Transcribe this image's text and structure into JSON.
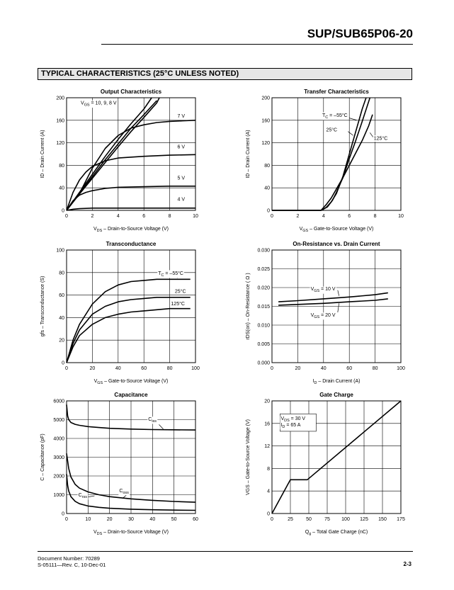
{
  "header": {
    "title": "SUP/SUB65P06-20"
  },
  "section": {
    "title": "TYPICAL CHARACTERISTICS (25°C UNLESS NOTED)"
  },
  "footer": {
    "doc_number": "Document Number:  70289",
    "revision": "S-05111—Rev. C, 10-Dec-01",
    "page": "2-3"
  },
  "chart_data": [
    {
      "id": "output",
      "type": "line",
      "title": "Output Characteristics",
      "xlabel": "VDS – Drain-to-Source Voltage (V)",
      "ylabel": "ID – Drain Current (A)",
      "xlim": [
        0,
        10
      ],
      "ylim": [
        0,
        200
      ],
      "xticks": [
        0,
        2,
        4,
        6,
        8,
        10
      ],
      "yticks": [
        0,
        40,
        80,
        120,
        160,
        200
      ],
      "grid": true,
      "series": [
        {
          "name": "VGS = 10, 9, 8 V",
          "x": [
            0,
            1,
            2,
            3,
            4,
            5,
            6,
            6.6
          ],
          "y": [
            0,
            32,
            64,
            96,
            126,
            154,
            180,
            200
          ]
        },
        {
          "x": [
            0,
            1,
            2,
            3,
            4,
            5,
            6,
            7
          ],
          "y": [
            0,
            30,
            60,
            90,
            118,
            146,
            170,
            195
          ]
        },
        {
          "x": [
            0,
            1,
            2,
            3,
            4,
            5,
            6,
            7,
            7.2
          ],
          "y": [
            0,
            29,
            57,
            85,
            113,
            140,
            165,
            191,
            200
          ]
        },
        {
          "name": "7 V",
          "x": [
            0,
            1,
            2,
            3,
            4,
            5,
            6,
            7,
            8,
            9,
            10
          ],
          "y": [
            0,
            30,
            75,
            110,
            133,
            146,
            152,
            156,
            158,
            159,
            160
          ]
        },
        {
          "name": "6 V",
          "x": [
            0,
            0.5,
            1,
            1.5,
            2,
            3,
            4,
            6,
            8,
            10
          ],
          "y": [
            0,
            32,
            54,
            68,
            78,
            88,
            93,
            96,
            98,
            99
          ]
        },
        {
          "name": "5 V",
          "x": [
            0,
            0.5,
            1,
            1.5,
            2,
            3,
            4,
            6,
            8,
            10
          ],
          "y": [
            0,
            17,
            27,
            32,
            35,
            39,
            41,
            42,
            43,
            43
          ]
        },
        {
          "name": "4 V",
          "x": [
            0,
            0.5,
            1,
            2,
            4,
            6,
            8,
            10
          ],
          "y": [
            0,
            2,
            3,
            4,
            4,
            4,
            4,
            4
          ]
        }
      ]
    },
    {
      "id": "transfer",
      "type": "line",
      "title": "Transfer Characteristics",
      "xlabel": "VGS – Gate-to-Source Voltage (V)",
      "ylabel": "ID – Drain Current (A)",
      "xlim": [
        0,
        10
      ],
      "ylim": [
        0,
        200
      ],
      "xticks": [
        0,
        2,
        4,
        6,
        8,
        10
      ],
      "yticks": [
        0,
        40,
        80,
        120,
        160,
        200
      ],
      "grid": true,
      "series": [
        {
          "name": "TC = –55°C",
          "x": [
            0,
            3.8,
            4.2,
            4.6,
            5,
            5.5,
            6,
            6.5,
            7,
            7.3
          ],
          "y": [
            0,
            0,
            5,
            15,
            30,
            60,
            100,
            140,
            180,
            200
          ]
        },
        {
          "name": "25°C",
          "x": [
            0,
            3.8,
            4.3,
            4.7,
            5,
            5.5,
            6,
            6.5,
            7,
            7.6
          ],
          "y": [
            0,
            0,
            6,
            18,
            32,
            58,
            92,
            124,
            158,
            200
          ]
        },
        {
          "name": "125°C",
          "x": [
            0,
            3.8,
            4.2,
            4.6,
            5,
            5.5,
            6,
            6.5,
            7,
            7.5,
            7.8
          ],
          "y": [
            0,
            0,
            10,
            22,
            38,
            58,
            80,
            102,
            124,
            150,
            170
          ]
        }
      ]
    },
    {
      "id": "transconductance",
      "type": "line",
      "title": "Transconductance",
      "xlabel": "VGS – Gate-to-Source Voltage (V)",
      "ylabel": "gfs – Transconductance (S)",
      "xlim": [
        0,
        100
      ],
      "ylim": [
        0,
        100
      ],
      "xticks": [
        0,
        20,
        40,
        60,
        80,
        100
      ],
      "yticks": [
        0,
        20,
        40,
        60,
        80,
        100
      ],
      "grid": true,
      "series": [
        {
          "name": "TC = –55°C",
          "x": [
            0,
            5,
            10,
            20,
            30,
            40,
            50,
            60,
            70,
            80,
            90,
            96
          ],
          "y": [
            0,
            20,
            34,
            52,
            63,
            69,
            72,
            73,
            74,
            74,
            74,
            74
          ]
        },
        {
          "name": "25°C",
          "x": [
            0,
            5,
            10,
            20,
            30,
            40,
            50,
            60,
            70,
            80,
            90,
            96
          ],
          "y": [
            0,
            17,
            29,
            43,
            50,
            54,
            56,
            57,
            58,
            58,
            58,
            58
          ]
        },
        {
          "name": "125°C",
          "x": [
            0,
            5,
            10,
            20,
            30,
            40,
            50,
            60,
            70,
            80,
            90,
            96
          ],
          "y": [
            0,
            14,
            24,
            34,
            40,
            43,
            45,
            46,
            47,
            48,
            48,
            48
          ]
        }
      ]
    },
    {
      "id": "onres",
      "type": "line",
      "title": "On-Resistance vs. Drain Current",
      "xlabel": "ID – Drain Current (A)",
      "ylabel": "rDS(on) – On-Resistance ( Ω )",
      "xlim": [
        0,
        100
      ],
      "ylim": [
        0,
        0.03
      ],
      "xticks": [
        0,
        20,
        40,
        60,
        80,
        100
      ],
      "yticks": [
        0.0,
        0.005,
        0.01,
        0.015,
        0.02,
        0.025,
        0.03
      ],
      "ydecimals": 3,
      "grid": true,
      "series": [
        {
          "name": "VGS = 10 V",
          "x": [
            5,
            20,
            40,
            60,
            80,
            90
          ],
          "y": [
            0.0162,
            0.0165,
            0.017,
            0.0175,
            0.0181,
            0.0186
          ]
        },
        {
          "name": "VGS = 20 V",
          "x": [
            5,
            20,
            40,
            60,
            80,
            90
          ],
          "y": [
            0.0153,
            0.0155,
            0.0158,
            0.0162,
            0.0166,
            0.017
          ]
        }
      ]
    },
    {
      "id": "capacitance",
      "type": "line",
      "title": "Capacitance",
      "xlabel": "VDS – Drain-to-Source Voltage (V)",
      "ylabel": "C – Capacitance (pF)",
      "xlim": [
        0,
        60
      ],
      "ylim": [
        0,
        6000
      ],
      "xticks": [
        0,
        10,
        20,
        30,
        40,
        50,
        60
      ],
      "yticks": [
        0,
        1000,
        2000,
        3000,
        4000,
        5000,
        6000
      ],
      "grid": true,
      "series": [
        {
          "name": "Ciss",
          "x": [
            0,
            0.5,
            1,
            2,
            4,
            6,
            10,
            15,
            20,
            30,
            40,
            50,
            60
          ],
          "y": [
            5800,
            5200,
            5000,
            4850,
            4750,
            4700,
            4630,
            4580,
            4540,
            4500,
            4470,
            4460,
            4450
          ]
        },
        {
          "name": "Coss",
          "x": [
            0,
            0.5,
            1,
            2,
            4,
            6,
            10,
            15,
            20,
            30,
            40,
            50,
            60
          ],
          "y": [
            3200,
            2800,
            2400,
            1950,
            1550,
            1350,
            1150,
            1000,
            900,
            780,
            700,
            640,
            600
          ]
        },
        {
          "name": "Crss",
          "x": [
            0,
            0.5,
            1,
            2,
            4,
            6,
            10,
            15,
            20,
            30,
            40,
            50,
            60
          ],
          "y": [
            2100,
            1500,
            1200,
            900,
            650,
            520,
            400,
            330,
            280,
            230,
            200,
            180,
            170
          ]
        }
      ]
    },
    {
      "id": "gatecharge",
      "type": "line",
      "title": "Gate Charge",
      "xlabel": "Qg – Total Gate Charge (nC)",
      "ylabel": "VGS – Gate-to-Source Voltage (V)",
      "xlim": [
        0,
        175
      ],
      "ylim": [
        0,
        20
      ],
      "xticks": [
        0,
        25,
        50,
        75,
        100,
        125,
        150,
        175
      ],
      "yticks": [
        0,
        4,
        8,
        12,
        16,
        20
      ],
      "grid": true,
      "series": [
        {
          "name": "VDS = 30 V, ID = 65 A",
          "x": [
            0,
            25,
            48,
            175
          ],
          "y": [
            0,
            6,
            6,
            20
          ]
        }
      ]
    }
  ]
}
